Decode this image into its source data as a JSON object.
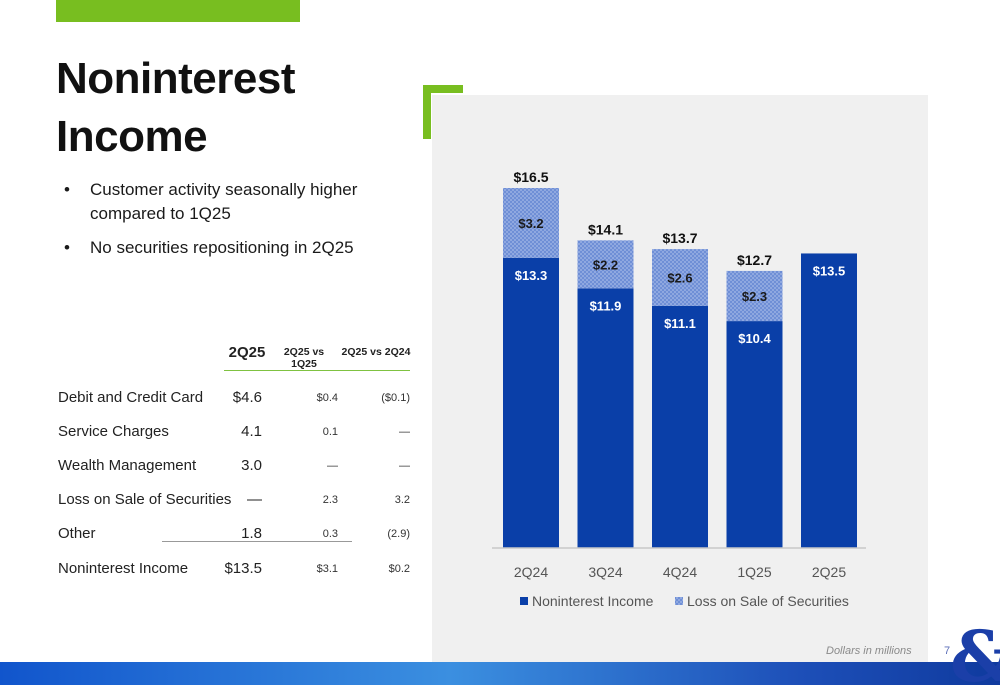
{
  "title": "Noninterest Income",
  "bullets": [
    "Customer activity seasonally higher compared to 1Q25",
    "No securities repositioning in 2Q25"
  ],
  "table": {
    "headers": [
      "2Q25",
      "2Q25 vs 1Q25",
      "2Q25 vs 2Q24"
    ],
    "rows": [
      {
        "label": "Debit and Credit Card",
        "v1": "$4.6",
        "v2": "$0.4",
        "v3": "($0.1)"
      },
      {
        "label": "Service Charges",
        "v1": "4.1",
        "v2": "0.1",
        "v3": "—"
      },
      {
        "label": "Wealth Management",
        "v1": "3.0",
        "v2": "—",
        "v3": "—"
      },
      {
        "label": "Loss on Sale of Securities",
        "v1": "—",
        "v2": "2.3",
        "v3": "3.2"
      },
      {
        "label": "Other",
        "v1": "1.8",
        "v2": "0.3",
        "v3": "(2.9)"
      },
      {
        "label": "Noninterest Income",
        "v1": "$13.5",
        "v2": "$3.1",
        "v3": "$0.2"
      }
    ]
  },
  "chart_data": {
    "type": "bar",
    "stacked": true,
    "categories": [
      "2Q24",
      "3Q24",
      "4Q24",
      "1Q25",
      "2Q25"
    ],
    "series": [
      {
        "name": "Noninterest Income",
        "values": [
          13.3,
          11.9,
          11.1,
          10.4,
          13.5
        ],
        "labels": [
          "$13.3",
          "$11.9",
          "$11.1",
          "$10.4",
          "$13.5"
        ],
        "color": "#0a3fa8"
      },
      {
        "name": "Loss on Sale of Securities",
        "values": [
          3.2,
          2.2,
          2.6,
          2.3,
          0
        ],
        "labels": [
          "$3.2",
          "$2.2",
          "$2.6",
          "$2.3",
          ""
        ],
        "color": "#8fa8e0"
      }
    ],
    "totals": [
      "$16.5",
      "$14.1",
      "$13.7",
      "$12.7",
      ""
    ],
    "ylim": [
      0,
      16.5
    ],
    "legend_position": "bottom",
    "grid": false
  },
  "footnote": "Dollars in millions",
  "page_number": "7",
  "logo_text": "&"
}
